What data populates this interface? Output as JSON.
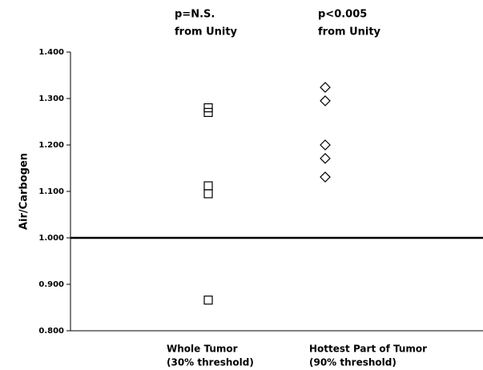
{
  "chart_data": {
    "type": "strip",
    "annotations": [
      [
        "p=N.S.",
        "from Unity"
      ],
      [
        "p<0.005",
        "from Unity"
      ]
    ],
    "y_label": "Air/Carbogen",
    "categories": [
      [
        "Whole Tumor",
        "(30% threshold)"
      ],
      [
        "Hottest Part of Tumor",
        "(90% threshold)"
      ]
    ],
    "values": [
      [
        1.28,
        1.27,
        1.112,
        1.095,
        0.866
      ],
      [
        1.324,
        1.295,
        1.2,
        1.171,
        1.131
      ]
    ],
    "markers": [
      "square",
      "diamond"
    ],
    "color": "#000000",
    "reference_line": 1,
    "ylim": [
      0.8,
      1.4
    ],
    "yticks": [
      {
        "value": 0.8,
        "label": "0.800"
      },
      {
        "value": 0.9,
        "label": "0.900"
      },
      {
        "value": 1.0,
        "label": "1.000"
      },
      {
        "value": 1.1,
        "label": "1.100"
      },
      {
        "value": 1.2,
        "label": "1.200"
      },
      {
        "value": 1.3,
        "label": "1.300"
      },
      {
        "value": 1.4,
        "label": "1.400"
      }
    ]
  }
}
